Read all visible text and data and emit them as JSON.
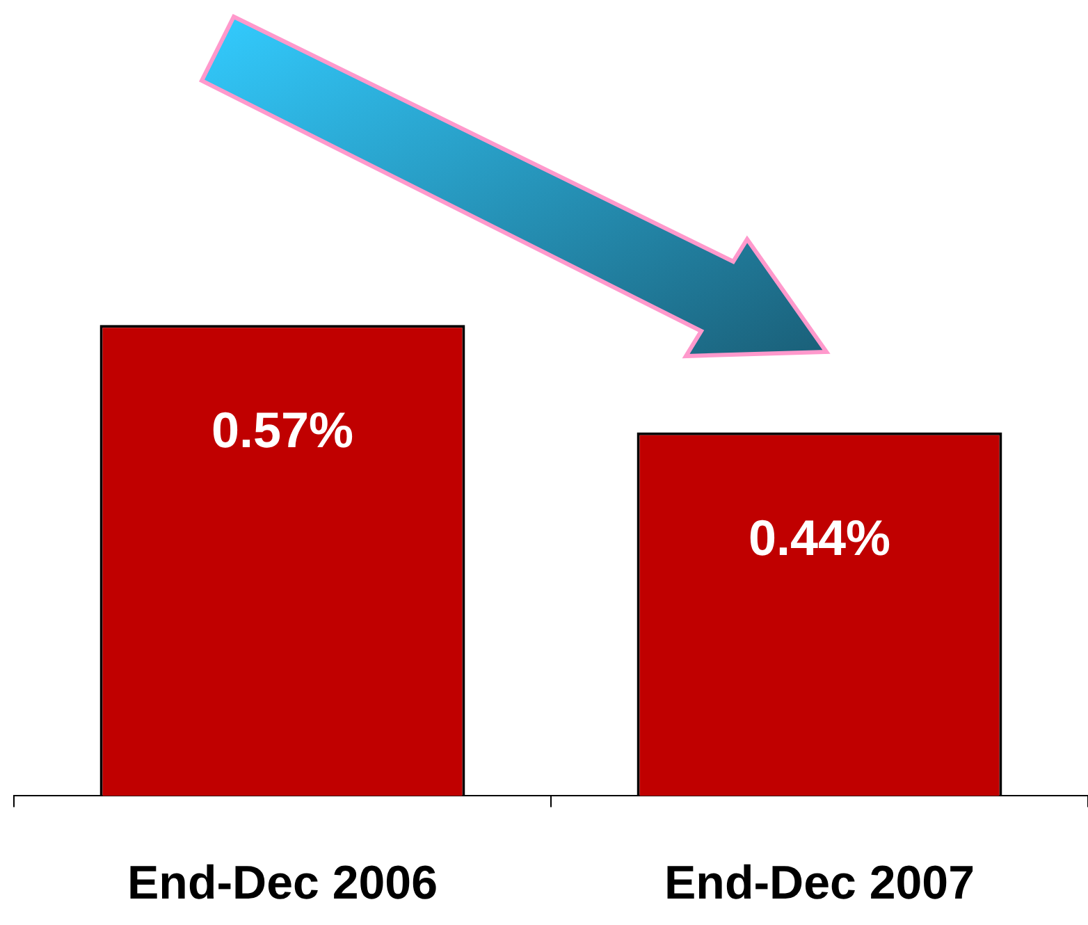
{
  "chart_data": {
    "type": "bar",
    "categories": [
      "End-Dec 2006",
      "End-Dec 2007"
    ],
    "values": [
      0.57,
      0.44
    ],
    "value_labels": [
      "0.57%",
      "0.44%"
    ],
    "color": "#c00000",
    "tick_labels": "x",
    "grid": false,
    "legend": false
  }
}
